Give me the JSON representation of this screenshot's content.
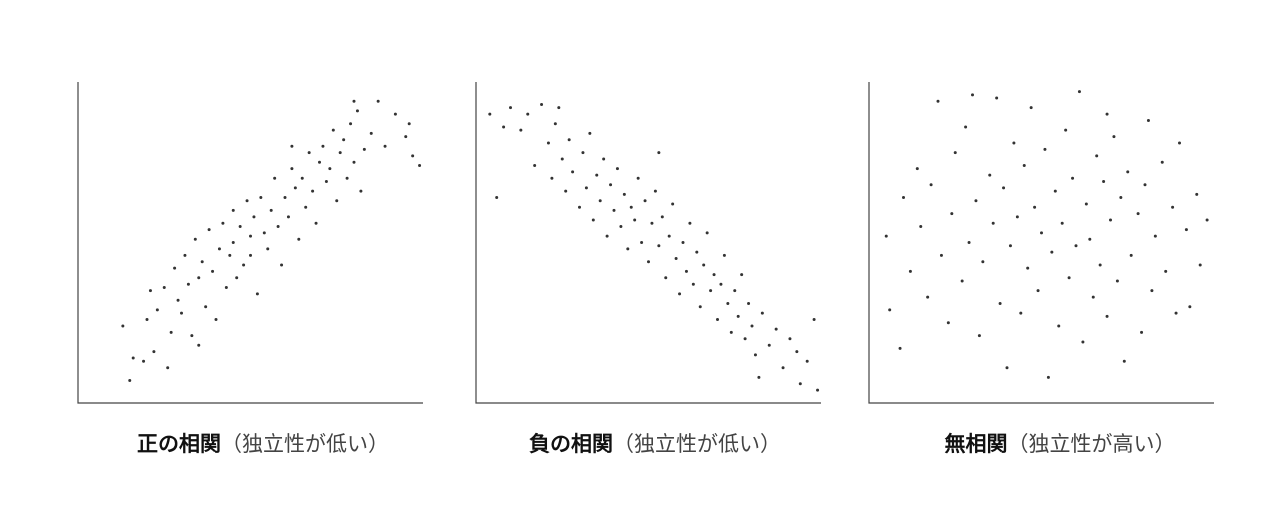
{
  "chart_data": [
    {
      "type": "scatter",
      "title": "正の相関",
      "subtitle": "（独立性が低い）",
      "xlim": [
        0,
        10
      ],
      "ylim": [
        0,
        10
      ],
      "grid": false,
      "point_color": "#333333",
      "points": [
        [
          1.3,
          2.4
        ],
        [
          1.5,
          0.7
        ],
        [
          1.6,
          1.4
        ],
        [
          1.9,
          1.3
        ],
        [
          2.0,
          2.6
        ],
        [
          2.1,
          3.5
        ],
        [
          2.2,
          1.6
        ],
        [
          2.3,
          2.9
        ],
        [
          2.5,
          3.6
        ],
        [
          2.6,
          1.1
        ],
        [
          2.7,
          2.2
        ],
        [
          2.8,
          4.2
        ],
        [
          2.9,
          3.2
        ],
        [
          3.0,
          2.8
        ],
        [
          3.1,
          4.6
        ],
        [
          3.2,
          3.7
        ],
        [
          3.3,
          2.1
        ],
        [
          3.4,
          5.1
        ],
        [
          3.5,
          3.9
        ],
        [
          3.5,
          1.8
        ],
        [
          3.6,
          4.4
        ],
        [
          3.7,
          3.0
        ],
        [
          3.8,
          5.4
        ],
        [
          3.9,
          4.1
        ],
        [
          4.0,
          2.6
        ],
        [
          4.1,
          4.8
        ],
        [
          4.2,
          5.6
        ],
        [
          4.3,
          3.6
        ],
        [
          4.4,
          4.6
        ],
        [
          4.5,
          6.0
        ],
        [
          4.5,
          5.0
        ],
        [
          4.6,
          3.9
        ],
        [
          4.7,
          5.5
        ],
        [
          4.8,
          4.3
        ],
        [
          4.9,
          6.3
        ],
        [
          5.0,
          5.2
        ],
        [
          5.0,
          4.6
        ],
        [
          5.1,
          5.8
        ],
        [
          5.2,
          3.4
        ],
        [
          5.3,
          6.4
        ],
        [
          5.4,
          5.3
        ],
        [
          5.5,
          4.8
        ],
        [
          5.6,
          6.0
        ],
        [
          5.7,
          7.0
        ],
        [
          5.8,
          5.5
        ],
        [
          5.9,
          4.3
        ],
        [
          6.0,
          6.4
        ],
        [
          6.1,
          5.8
        ],
        [
          6.2,
          7.3
        ],
        [
          6.3,
          6.7
        ],
        [
          6.4,
          5.1
        ],
        [
          6.5,
          7.0
        ],
        [
          6.6,
          6.1
        ],
        [
          6.7,
          7.8
        ],
        [
          6.8,
          6.6
        ],
        [
          6.9,
          5.6
        ],
        [
          7.0,
          7.5
        ],
        [
          7.1,
          8.0
        ],
        [
          7.2,
          6.9
        ],
        [
          7.3,
          7.3
        ],
        [
          7.4,
          8.5
        ],
        [
          7.5,
          6.3
        ],
        [
          7.6,
          7.8
        ],
        [
          7.7,
          8.2
        ],
        [
          7.8,
          7.0
        ],
        [
          7.9,
          8.7
        ],
        [
          8.0,
          7.5
        ],
        [
          8.1,
          9.1
        ],
        [
          8.2,
          6.6
        ],
        [
          8.3,
          7.9
        ],
        [
          8.5,
          8.4
        ],
        [
          8.7,
          9.4
        ],
        [
          8.9,
          8.0
        ],
        [
          9.2,
          9.0
        ],
        [
          9.5,
          8.3
        ],
        [
          9.6,
          8.7
        ],
        [
          9.7,
          7.7
        ],
        [
          9.9,
          7.4
        ],
        [
          8.0,
          9.4
        ],
        [
          6.2,
          8.0
        ]
      ]
    },
    {
      "type": "scatter",
      "title": "負の相関",
      "subtitle": "（独立性が低い）",
      "xlim": [
        0,
        10
      ],
      "ylim": [
        0,
        10
      ],
      "grid": false,
      "point_color": "#333333",
      "points": [
        [
          0.4,
          9.0
        ],
        [
          0.6,
          6.4
        ],
        [
          0.8,
          8.6
        ],
        [
          1.0,
          9.2
        ],
        [
          1.3,
          8.5
        ],
        [
          1.5,
          9.0
        ],
        [
          1.7,
          7.4
        ],
        [
          1.9,
          9.3
        ],
        [
          2.1,
          8.1
        ],
        [
          2.2,
          7.0
        ],
        [
          2.3,
          8.7
        ],
        [
          2.5,
          7.6
        ],
        [
          2.6,
          6.6
        ],
        [
          2.7,
          8.2
        ],
        [
          2.8,
          7.2
        ],
        [
          3.0,
          6.1
        ],
        [
          3.1,
          7.8
        ],
        [
          3.2,
          6.7
        ],
        [
          3.3,
          8.4
        ],
        [
          3.4,
          5.7
        ],
        [
          3.5,
          7.1
        ],
        [
          3.6,
          6.3
        ],
        [
          3.7,
          7.6
        ],
        [
          3.8,
          5.2
        ],
        [
          3.9,
          6.8
        ],
        [
          4.0,
          6.0
        ],
        [
          4.1,
          7.3
        ],
        [
          4.2,
          5.5
        ],
        [
          4.3,
          6.5
        ],
        [
          4.4,
          4.8
        ],
        [
          4.5,
          6.1
        ],
        [
          4.6,
          5.7
        ],
        [
          4.7,
          7.0
        ],
        [
          4.8,
          5.0
        ],
        [
          4.9,
          6.3
        ],
        [
          5.0,
          4.4
        ],
        [
          5.1,
          5.6
        ],
        [
          5.2,
          6.6
        ],
        [
          5.3,
          4.9
        ],
        [
          5.4,
          5.8
        ],
        [
          5.5,
          3.9
        ],
        [
          5.6,
          5.2
        ],
        [
          5.7,
          6.2
        ],
        [
          5.8,
          4.5
        ],
        [
          5.9,
          3.4
        ],
        [
          6.0,
          5.0
        ],
        [
          6.1,
          4.1
        ],
        [
          6.2,
          5.6
        ],
        [
          6.3,
          3.7
        ],
        [
          6.4,
          4.7
        ],
        [
          6.5,
          3.0
        ],
        [
          6.6,
          4.3
        ],
        [
          6.7,
          5.3
        ],
        [
          6.8,
          3.5
        ],
        [
          6.9,
          4.0
        ],
        [
          7.0,
          2.6
        ],
        [
          7.1,
          3.7
        ],
        [
          7.2,
          4.6
        ],
        [
          7.3,
          3.1
        ],
        [
          7.4,
          2.2
        ],
        [
          7.5,
          3.5
        ],
        [
          7.6,
          2.7
        ],
        [
          7.7,
          4.0
        ],
        [
          7.8,
          2.0
        ],
        [
          7.9,
          3.1
        ],
        [
          8.0,
          2.4
        ],
        [
          8.1,
          1.5
        ],
        [
          8.3,
          2.8
        ],
        [
          8.5,
          1.8
        ],
        [
          8.7,
          2.3
        ],
        [
          8.9,
          1.1
        ],
        [
          9.1,
          2.0
        ],
        [
          9.3,
          1.6
        ],
        [
          9.4,
          0.6
        ],
        [
          9.6,
          1.3
        ],
        [
          9.8,
          2.6
        ],
        [
          9.9,
          0.4
        ],
        [
          2.4,
          9.2
        ],
        [
          5.3,
          7.8
        ],
        [
          8.2,
          0.8
        ]
      ]
    },
    {
      "type": "scatter",
      "title": "無相関",
      "subtitle": "（独立性が高い）",
      "xlim": [
        0,
        10
      ],
      "ylim": [
        0,
        10
      ],
      "grid": false,
      "point_color": "#333333",
      "points": [
        [
          0.5,
          5.2
        ],
        [
          0.6,
          2.9
        ],
        [
          0.9,
          1.7
        ],
        [
          1.0,
          6.4
        ],
        [
          1.2,
          4.1
        ],
        [
          1.4,
          7.3
        ],
        [
          1.5,
          5.5
        ],
        [
          1.7,
          3.3
        ],
        [
          1.8,
          6.8
        ],
        [
          2.0,
          9.4
        ],
        [
          2.1,
          4.6
        ],
        [
          2.3,
          2.5
        ],
        [
          2.4,
          5.9
        ],
        [
          2.5,
          7.8
        ],
        [
          2.7,
          3.8
        ],
        [
          2.8,
          8.6
        ],
        [
          2.9,
          5.0
        ],
        [
          3.1,
          6.3
        ],
        [
          3.2,
          2.1
        ],
        [
          3.3,
          4.4
        ],
        [
          3.5,
          7.1
        ],
        [
          3.6,
          5.6
        ],
        [
          3.7,
          9.5
        ],
        [
          3.8,
          3.1
        ],
        [
          3.9,
          6.7
        ],
        [
          4.0,
          1.1
        ],
        [
          4.1,
          4.9
        ],
        [
          4.2,
          8.1
        ],
        [
          4.3,
          5.8
        ],
        [
          4.4,
          2.8
        ],
        [
          4.5,
          7.4
        ],
        [
          4.6,
          4.2
        ],
        [
          4.7,
          9.2
        ],
        [
          4.8,
          6.1
        ],
        [
          4.9,
          3.5
        ],
        [
          5.0,
          5.3
        ],
        [
          5.1,
          7.9
        ],
        [
          5.2,
          0.8
        ],
        [
          5.3,
          4.7
        ],
        [
          5.4,
          6.6
        ],
        [
          5.5,
          2.4
        ],
        [
          5.6,
          5.6
        ],
        [
          5.7,
          8.5
        ],
        [
          5.8,
          3.9
        ],
        [
          5.9,
          7.0
        ],
        [
          6.0,
          4.9
        ],
        [
          6.1,
          9.7
        ],
        [
          6.2,
          1.9
        ],
        [
          6.3,
          6.2
        ],
        [
          6.4,
          5.1
        ],
        [
          6.5,
          3.3
        ],
        [
          6.6,
          7.7
        ],
        [
          6.7,
          4.3
        ],
        [
          6.8,
          6.9
        ],
        [
          6.9,
          2.7
        ],
        [
          7.0,
          5.7
        ],
        [
          7.1,
          8.3
        ],
        [
          7.2,
          3.8
        ],
        [
          7.3,
          6.4
        ],
        [
          7.4,
          1.3
        ],
        [
          7.5,
          7.2
        ],
        [
          7.6,
          4.6
        ],
        [
          7.8,
          5.9
        ],
        [
          7.9,
          2.2
        ],
        [
          8.0,
          6.8
        ],
        [
          8.1,
          8.8
        ],
        [
          8.2,
          3.5
        ],
        [
          8.3,
          5.2
        ],
        [
          8.5,
          7.5
        ],
        [
          8.6,
          4.1
        ],
        [
          8.8,
          6.1
        ],
        [
          8.9,
          2.8
        ],
        [
          9.0,
          8.1
        ],
        [
          9.2,
          5.4
        ],
        [
          9.3,
          3.0
        ],
        [
          9.5,
          6.5
        ],
        [
          9.6,
          4.3
        ],
        [
          9.8,
          5.7
        ],
        [
          3.0,
          9.6
        ],
        [
          6.9,
          9.0
        ]
      ]
    }
  ]
}
